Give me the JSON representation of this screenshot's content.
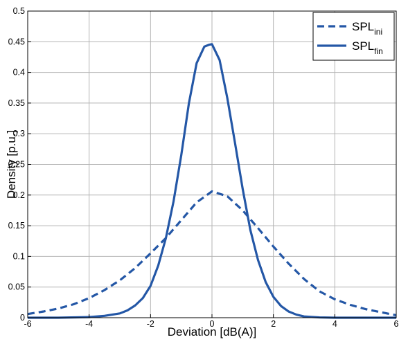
{
  "chart_data": {
    "type": "line",
    "title": "",
    "xlabel": "Deviation [dB(A)]",
    "ylabel": "Density [p.u.]",
    "xlim": [
      -6,
      6
    ],
    "ylim": [
      0,
      0.5
    ],
    "xticks": [
      "-6",
      "-4",
      "-2",
      "0",
      "2",
      "4",
      "6"
    ],
    "yticks": [
      "0",
      "0.05",
      "0.1",
      "0.15",
      "0.2",
      "0.25",
      "0.3",
      "0.35",
      "0.4",
      "0.45",
      "0.5"
    ],
    "grid": true,
    "legend_position": "top-right",
    "series": [
      {
        "name": "SPL_ini",
        "name_base": "SPL",
        "name_sub": "ini",
        "style": "dashed",
        "color": "#2457a6",
        "x": [
          -6,
          -5.5,
          -5,
          -4.5,
          -4,
          -3.5,
          -3,
          -2.5,
          -2,
          -1.5,
          -1,
          -0.5,
          0,
          0.5,
          1,
          1.5,
          2,
          2.5,
          3,
          3.5,
          4,
          4.5,
          5,
          5.5,
          6
        ],
        "y": [
          0.006,
          0.01,
          0.015,
          0.022,
          0.032,
          0.045,
          0.061,
          0.081,
          0.105,
          0.13,
          0.159,
          0.188,
          0.206,
          0.198,
          0.175,
          0.146,
          0.116,
          0.088,
          0.063,
          0.043,
          0.03,
          0.021,
          0.014,
          0.009,
          0.004
        ]
      },
      {
        "name": "SPL_fin",
        "name_base": "SPL",
        "name_sub": "fin",
        "style": "solid",
        "color": "#2457a6",
        "x": [
          -6,
          -5,
          -4,
          -3.5,
          -3,
          -2.75,
          -2.5,
          -2.25,
          -2,
          -1.75,
          -1.5,
          -1.25,
          -1,
          -0.75,
          -0.5,
          -0.25,
          -0.1,
          0,
          0.25,
          0.5,
          0.75,
          1,
          1.25,
          1.5,
          1.75,
          2,
          2.25,
          2.5,
          2.75,
          3,
          3.5,
          4,
          5,
          6
        ],
        "y": [
          0.0,
          0.0,
          0.001,
          0.003,
          0.007,
          0.012,
          0.02,
          0.032,
          0.052,
          0.085,
          0.13,
          0.19,
          0.265,
          0.35,
          0.415,
          0.442,
          0.445,
          0.446,
          0.42,
          0.358,
          0.285,
          0.21,
          0.143,
          0.094,
          0.058,
          0.034,
          0.019,
          0.01,
          0.005,
          0.002,
          0.0005,
          0.0,
          0.0,
          0.0
        ]
      }
    ]
  }
}
